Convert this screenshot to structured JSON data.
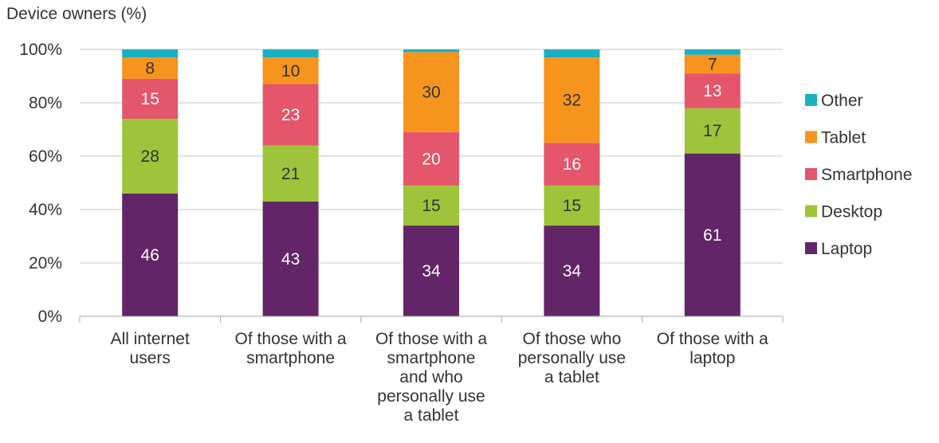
{
  "chart_data": {
    "type": "bar",
    "stacked": true,
    "title": "",
    "ylabel": "Device owners (%)",
    "xlabel": "",
    "ylim": [
      0,
      100
    ],
    "y_ticks": [
      "0%",
      "20%",
      "40%",
      "60%",
      "80%",
      "100%"
    ],
    "grid": true,
    "legend_position": "right",
    "categories": [
      [
        "All internet",
        "users"
      ],
      [
        "Of those with a",
        "smartphone"
      ],
      [
        "Of those with a",
        "smartphone",
        "and who",
        "personally use",
        "a tablet"
      ],
      [
        "Of those who",
        "personally use",
        "a tablet"
      ],
      [
        "Of those with a",
        "laptop"
      ]
    ],
    "series": [
      {
        "name": "Laptop",
        "color": "#622567",
        "label_color": "#ffffff",
        "values": [
          46,
          43,
          34,
          34,
          61
        ]
      },
      {
        "name": "Desktop",
        "color": "#9dc43a",
        "label_color": "#333333",
        "values": [
          28,
          21,
          15,
          15,
          17
        ]
      },
      {
        "name": "Smartphone",
        "color": "#e5556b",
        "label_color": "#ffffff",
        "values": [
          15,
          23,
          20,
          16,
          13
        ]
      },
      {
        "name": "Tablet",
        "color": "#f6941e",
        "label_color": "#333333",
        "values": [
          8,
          10,
          30,
          32,
          7
        ]
      },
      {
        "name": "Other",
        "color": "#1bb0c0",
        "label_color": "#333333",
        "values": [
          3,
          3,
          1,
          3,
          2
        ]
      }
    ],
    "data_labels": [
      [
        46,
        43,
        34,
        34,
        61
      ],
      [
        28,
        21,
        15,
        15,
        17
      ],
      [
        15,
        23,
        20,
        16,
        13
      ],
      [
        8,
        10,
        30,
        32,
        7
      ],
      [
        null,
        null,
        null,
        null,
        null
      ]
    ],
    "legend_order": [
      "Other",
      "Tablet",
      "Smartphone",
      "Desktop",
      "Laptop"
    ]
  }
}
